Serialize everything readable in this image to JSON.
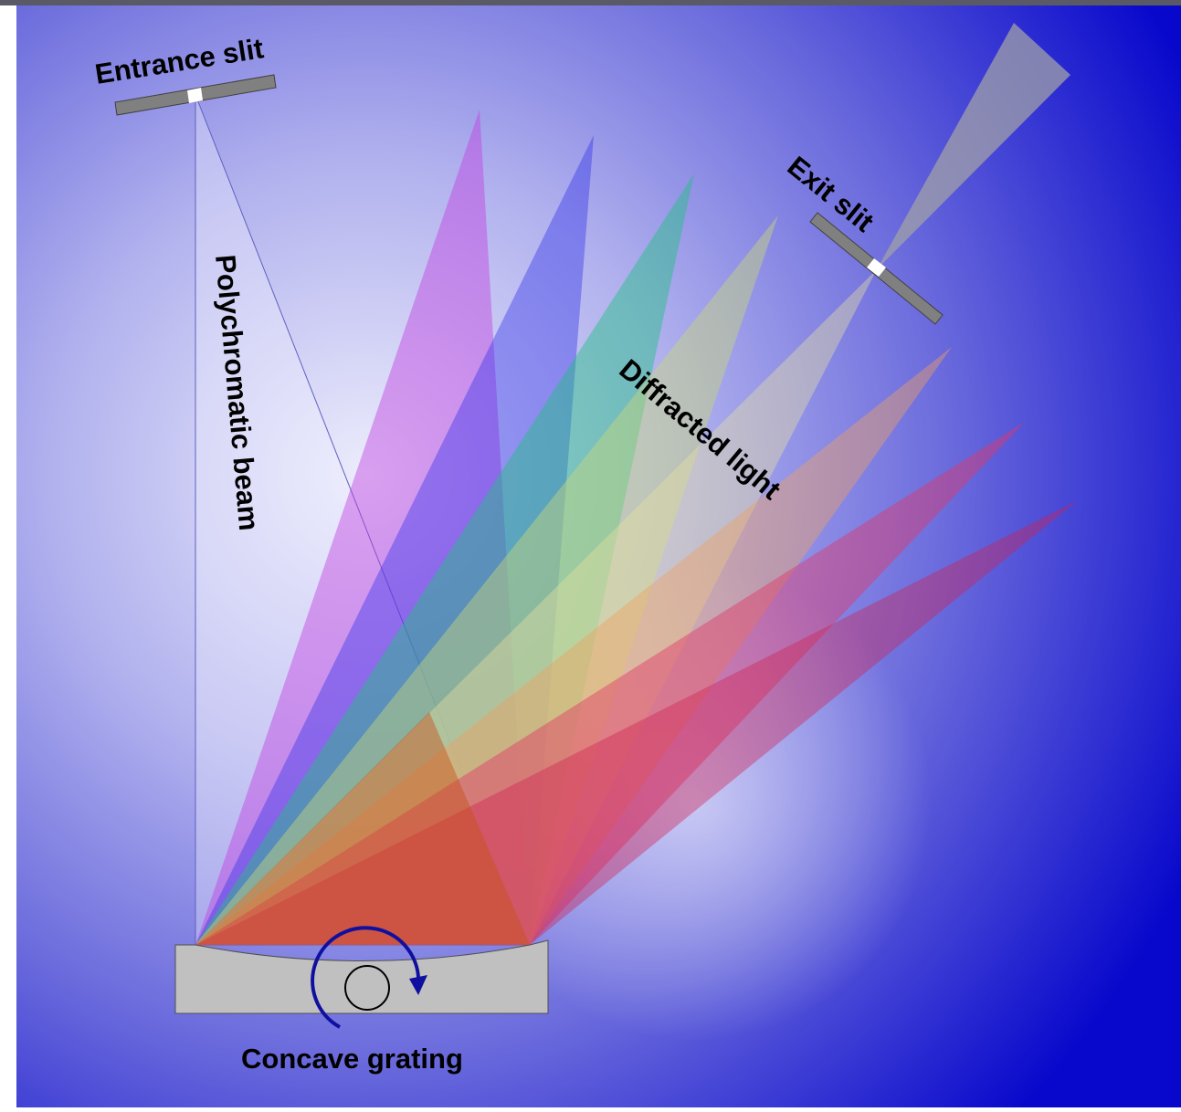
{
  "labels": {
    "entrance_slit": "Entrance slit",
    "exit_slit": "Exit slit",
    "polychromatic_beam": "Polychromatic beam",
    "diffracted_light": "Diffracted light",
    "concave_grating": "Concave grating"
  },
  "colors": {
    "frame_top": "#5a5a66",
    "background_center": "#e6e6fa",
    "background_edge": "#1a1ad2",
    "slit_body": "#808080",
    "slit_opening": "#ffffff",
    "grating_body": "#c0c0c0",
    "rotation_arrow": "#1010a0"
  },
  "icons": {
    "rotation": "clockwise-rotation-arrow-icon"
  },
  "spectrum_colors": [
    "#c040e0",
    "#3030e0",
    "#20c080",
    "#d0d080",
    "#f0b070",
    "#e04060",
    "#d02050"
  ],
  "incident_beam_color": "#c85018"
}
